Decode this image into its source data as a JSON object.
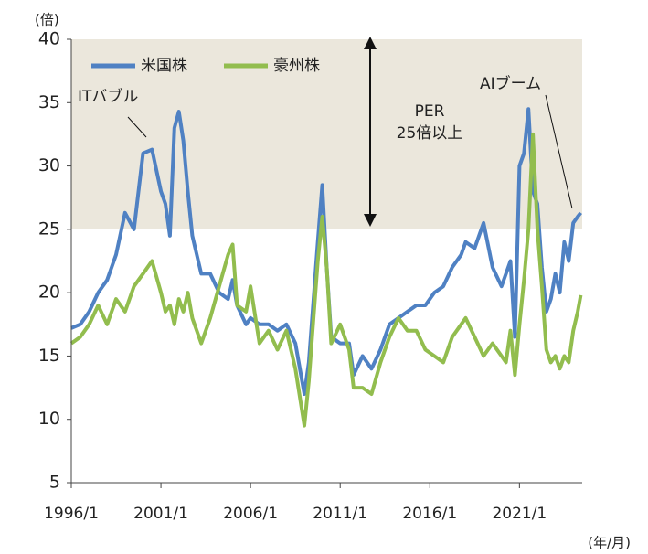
{
  "chart_data": {
    "type": "line",
    "y_unit_label": "(倍)",
    "x_unit_label": "(年/月)",
    "annotations": {
      "it_bubble": "ITバブル",
      "ai_boom": "AIブーム",
      "per_band": [
        "PER",
        "25倍以上"
      ]
    },
    "shade_from": 25,
    "shade_color": "#ebe7dc",
    "x": [
      "1996/1",
      "1996/7",
      "1997/1",
      "1997/7",
      "1998/1",
      "1998/7",
      "1999/1",
      "1999/7",
      "2000/1",
      "2000/7",
      "2001/1",
      "2001/4",
      "2001/7",
      "2001/10",
      "2002/1",
      "2002/4",
      "2002/7",
      "2002/10",
      "2003/4",
      "2003/10",
      "2004/4",
      "2004/10",
      "2005/1",
      "2005/4",
      "2005/10",
      "2006/1",
      "2006/7",
      "2007/1",
      "2007/7",
      "2008/1",
      "2008/7",
      "2009/1",
      "2009/4",
      "2009/10",
      "2010/1",
      "2010/4",
      "2010/7",
      "2011/1",
      "2011/7",
      "2011/10",
      "2012/4",
      "2012/10",
      "2013/4",
      "2013/10",
      "2014/4",
      "2014/10",
      "2015/4",
      "2015/10",
      "2016/4",
      "2016/10",
      "2017/4",
      "2017/10",
      "2018/1",
      "2018/7",
      "2019/1",
      "2019/7",
      "2020/1",
      "2020/4",
      "2020/7",
      "2020/10",
      "2021/1",
      "2021/4",
      "2021/7",
      "2021/10",
      "2022/1",
      "2022/4",
      "2022/7",
      "2022/10",
      "2023/1",
      "2023/4",
      "2023/7",
      "2023/10",
      "2024/1",
      "2024/4",
      "2024/6"
    ],
    "series": [
      {
        "name": "米国株",
        "color": "#4f81c3",
        "values": [
          17.2,
          17.5,
          18.5,
          20.0,
          21.0,
          23.0,
          26.3,
          25.0,
          31.0,
          31.3,
          28.0,
          27.0,
          24.5,
          33.0,
          34.3,
          32.0,
          28.0,
          24.5,
          21.5,
          21.5,
          20.0,
          19.5,
          21.0,
          19.0,
          17.5,
          18.0,
          17.5,
          17.5,
          17.0,
          17.5,
          16.0,
          12.0,
          14.5,
          24.0,
          28.5,
          22.0,
          16.5,
          16.0,
          16.0,
          13.5,
          15.0,
          14.0,
          15.5,
          17.5,
          18.0,
          18.5,
          19.0,
          19.0,
          20.0,
          20.5,
          22.0,
          23.0,
          24.0,
          23.5,
          25.5,
          22.0,
          20.5,
          21.5,
          22.5,
          16.5,
          30.0,
          31.0,
          34.5,
          28.0,
          27.0,
          22.0,
          18.5,
          19.5,
          21.5,
          20.0,
          24.0,
          22.5,
          25.5,
          26.0,
          26.3
        ]
      },
      {
        "name": "豪州株",
        "color": "#92bd4e",
        "values": [
          16.0,
          16.5,
          17.5,
          19.0,
          17.5,
          19.5,
          18.5,
          20.5,
          21.5,
          22.5,
          20.0,
          18.5,
          19.0,
          17.5,
          19.5,
          18.5,
          20.0,
          18.0,
          16.0,
          18.0,
          20.5,
          23.0,
          23.8,
          19.0,
          18.5,
          20.5,
          16.0,
          17.0,
          15.5,
          17.0,
          14.0,
          9.5,
          13.0,
          22.5,
          26.0,
          22.0,
          16.0,
          17.5,
          15.5,
          12.5,
          12.5,
          12.0,
          14.5,
          16.5,
          18.0,
          17.0,
          17.0,
          15.5,
          15.0,
          14.5,
          16.5,
          17.5,
          18.0,
          16.5,
          15.0,
          16.0,
          15.0,
          14.5,
          17.0,
          13.5,
          17.5,
          21.0,
          25.0,
          32.5,
          25.0,
          20.5,
          15.5,
          14.5,
          15.0,
          14.0,
          15.0,
          14.5,
          17.0,
          18.5,
          19.8
        ]
      }
    ],
    "xlim": [
      "1996/1",
      "2024/7"
    ],
    "xticks": [
      "1996/1",
      "2001/1",
      "2006/1",
      "2011/1",
      "2016/1",
      "2021/1"
    ],
    "ylim": [
      5,
      40
    ],
    "yticks": [
      5,
      10,
      15,
      20,
      25,
      30,
      35,
      40
    ],
    "legend": "upper left"
  }
}
